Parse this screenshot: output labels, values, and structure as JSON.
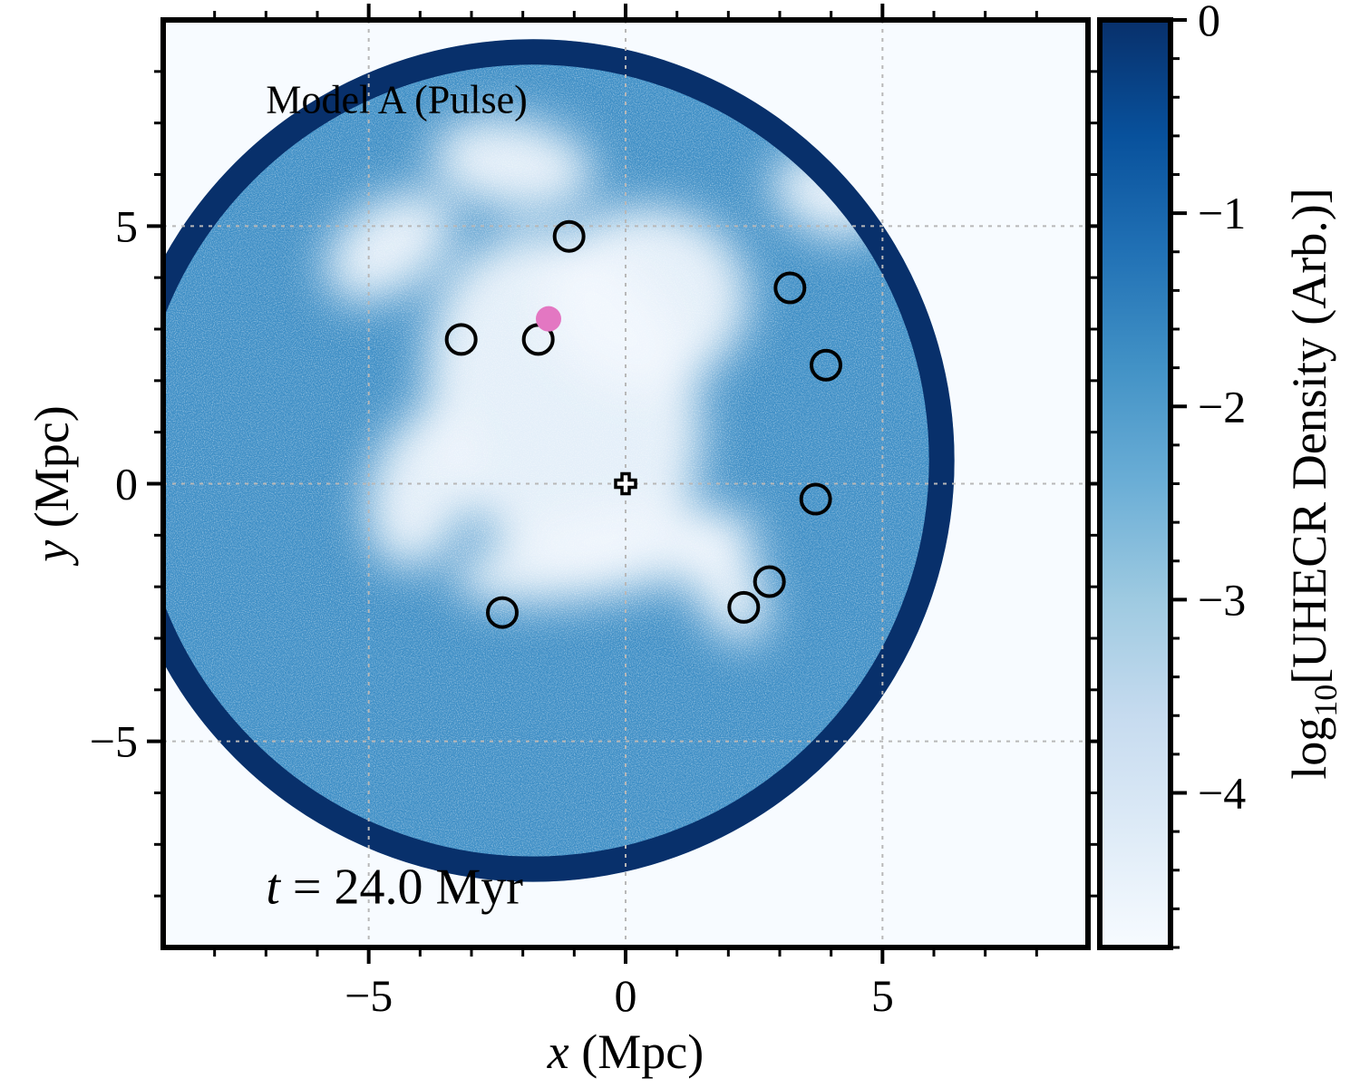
{
  "chart_data": {
    "type": "heatmap",
    "title": "",
    "annotation": "Model A (Pulse)",
    "time_label": {
      "var": "t",
      "rest": " = 24.0 Myr"
    },
    "xlabel": {
      "var": "x",
      "rest": " (Mpc)"
    },
    "ylabel": {
      "var": "y",
      "rest": " (Mpc)"
    },
    "xlim": [
      -9,
      9
    ],
    "ylim": [
      -9,
      9
    ],
    "x_ticks": [
      {
        "value": -5,
        "label": "−5"
      },
      {
        "value": 0,
        "label": "0"
      },
      {
        "value": 5,
        "label": "5"
      }
    ],
    "y_ticks": [
      {
        "value": -5,
        "label": "−5"
      },
      {
        "value": 0,
        "label": "0"
      },
      {
        "value": 5,
        "label": "5"
      }
    ],
    "grid": true,
    "colorbar": {
      "label_main": "log",
      "label_sub": "10",
      "label_rest": "[UHECR Density (Arb.)]",
      "range": [
        -4.8,
        0
      ],
      "ticks": [
        {
          "value": 0,
          "label": "0"
        },
        {
          "value": -1,
          "label": "−1"
        },
        {
          "value": -2,
          "label": "−2"
        },
        {
          "value": -3,
          "label": "−3"
        },
        {
          "value": -4,
          "label": "−4"
        }
      ],
      "colormap": "Blues",
      "color_low": "#f7fbff",
      "color_high": "#08306b"
    },
    "density_region": {
      "shape": "circle",
      "center": [
        -1.8,
        0.45
      ],
      "radius": 8.2,
      "rim_value": 0,
      "interior_value": -2.5
    },
    "galaxies_open_circles": [
      {
        "x": -1.1,
        "y": 4.8
      },
      {
        "x": -3.2,
        "y": 2.8
      },
      {
        "x": -1.7,
        "y": 2.8
      },
      {
        "x": 3.2,
        "y": 3.8
      },
      {
        "x": 3.9,
        "y": 2.3
      },
      {
        "x": 3.7,
        "y": -0.3
      },
      {
        "x": 2.8,
        "y": -1.9
      },
      {
        "x": 2.3,
        "y": -2.4
      },
      {
        "x": -2.4,
        "y": -2.5
      }
    ],
    "source_marker": {
      "x": -1.5,
      "y": 3.2,
      "color": "#e377c2"
    },
    "observer_marker": {
      "x": 0,
      "y": 0,
      "symbol": "cross"
    }
  }
}
